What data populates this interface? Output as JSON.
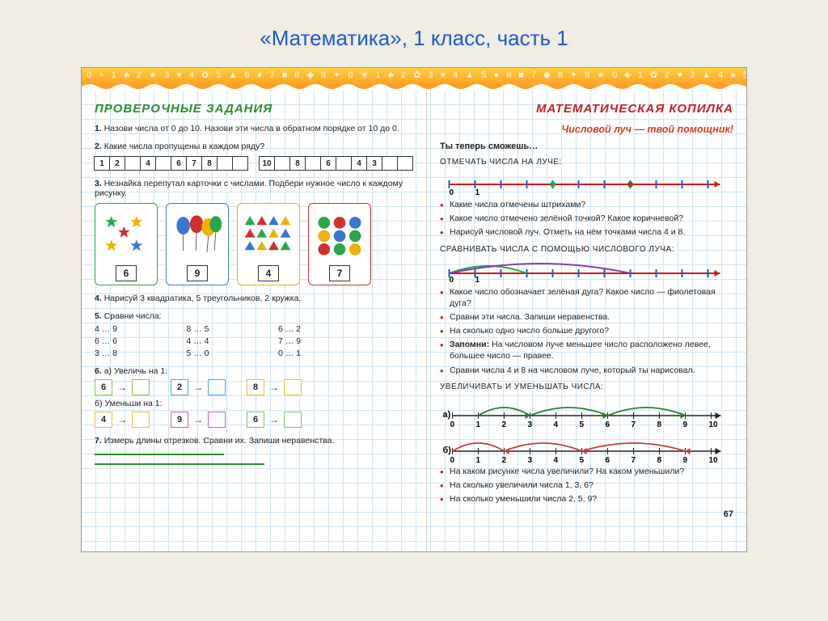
{
  "title": "«Математика», 1 класс, часть 1",
  "left": {
    "header": "ПРОВЕРОЧНЫЕ ЗАДАНИЯ",
    "t1": {
      "n": "1.",
      "text": "Назови числа от 0 до 10. Назови эти числа в обратном порядке от 10 до 0."
    },
    "t2": {
      "n": "2.",
      "text": "Какие числа пропущены в каждом ряду?"
    },
    "seq1": [
      "1",
      "2",
      "",
      "4",
      "",
      "6",
      "7",
      "8",
      "",
      ""
    ],
    "seq2": [
      "10",
      "",
      "8",
      "",
      "6",
      "",
      "4",
      "3",
      "",
      ""
    ],
    "t3": {
      "n": "3.",
      "text": "Незнайка перепутал карточки с числами. Подбери нужное число к каждому рисунку."
    },
    "cards": [
      {
        "num": "6",
        "border": "#2aa54a",
        "kind": "stars"
      },
      {
        "num": "9",
        "border": "#3a78d0",
        "kind": "balloons"
      },
      {
        "num": "4",
        "border": "#f0b000",
        "kind": "triangles"
      },
      {
        "num": "7",
        "border": "#d03030",
        "kind": "dots"
      }
    ],
    "t4": {
      "n": "4.",
      "text": "Нарисуй 3 квадратика, 5 треугольников, 2 кружка."
    },
    "t5": {
      "n": "5.",
      "text": "Сравни числа:",
      "rows": [
        [
          "4 … 9",
          "8 … 5",
          "6 … 2"
        ],
        [
          "6 … 6",
          "4 … 4",
          "7 … 9"
        ],
        [
          "3 … 8",
          "5 … 0",
          "0 … 1"
        ]
      ]
    },
    "t6": {
      "n": "6.",
      "a_label": "а) Увеличь на 1:",
      "b_label": "б) Уменьши на 1:",
      "a": [
        {
          "v": "6",
          "c": "#7ac858"
        },
        {
          "v": "2",
          "c": "#49a6e8"
        },
        {
          "v": "8",
          "c": "#f2c02a"
        }
      ],
      "b": [
        {
          "v": "4",
          "c": "#f2c02a"
        },
        {
          "v": "9",
          "c": "#d85aa6"
        },
        {
          "v": "6",
          "c": "#7ac858"
        }
      ]
    },
    "t7": {
      "n": "7.",
      "text": "Измерь длины отрезков. Сравни их. Запиши неравенства."
    }
  },
  "right": {
    "header": "МАТЕМАТИЧЕСКАЯ КОПИЛКА",
    "sub": "Числовой луч — твой помощник!",
    "youcan": "Ты теперь сможешь…",
    "s1": {
      "cap": "ОТМЕЧАТЬ ЧИСЛА НА ЛУЧЕ:",
      "labels": [
        "0",
        "1"
      ],
      "line_color": "#d01818",
      "tick_color": "#1a60c0",
      "dot1_color": "#2aa54a",
      "dot2_color": "#8a4a1a",
      "bullets": [
        "Какие числа отмечены штрихами?",
        "Какое число отмечено зелёной точкой? Какое коричневой?",
        "Нарисуй числовой луч. Отметь на нём точками числа 4 и 8."
      ]
    },
    "s2": {
      "cap": "СРАВНИВАТЬ ЧИСЛА С ПОМОЩЬЮ ЧИСЛОВОГО ЛУЧА:",
      "labels": [
        "0",
        "1"
      ],
      "arc1_color": "#2aa54a",
      "arc2_color": "#8a3ab0",
      "bullets": [
        "Какое число обозначает зелёная дуга? Какое число — фиолетовая дуга?",
        "Сравни эти числа. Запиши неравенства.",
        "На сколько одно число больше другого?",
        "Запомни: На числовом луче меньшее число расположено левее, большее число — правее.",
        "Сравни числа 4 и 8 на числовом луче, который ты нарисовал."
      ]
    },
    "s3": {
      "cap": "УВЕЛИЧИВАТЬ И УМЕНЬШАТЬ ЧИСЛА:",
      "ticks": [
        "0",
        "1",
        "2",
        "3",
        "4",
        "5",
        "6",
        "7",
        "8",
        "9",
        "10"
      ],
      "a_color": "#2a7a2a",
      "b_color": "#c93a3a",
      "bullets": [
        "На каком рисунке числа увеличили? На каком уменьшили?",
        "На сколько увеличили числа 1, 3, 6?",
        "На сколько уменьшили числа 2, 5, 9?"
      ]
    },
    "pagenum": "67"
  }
}
